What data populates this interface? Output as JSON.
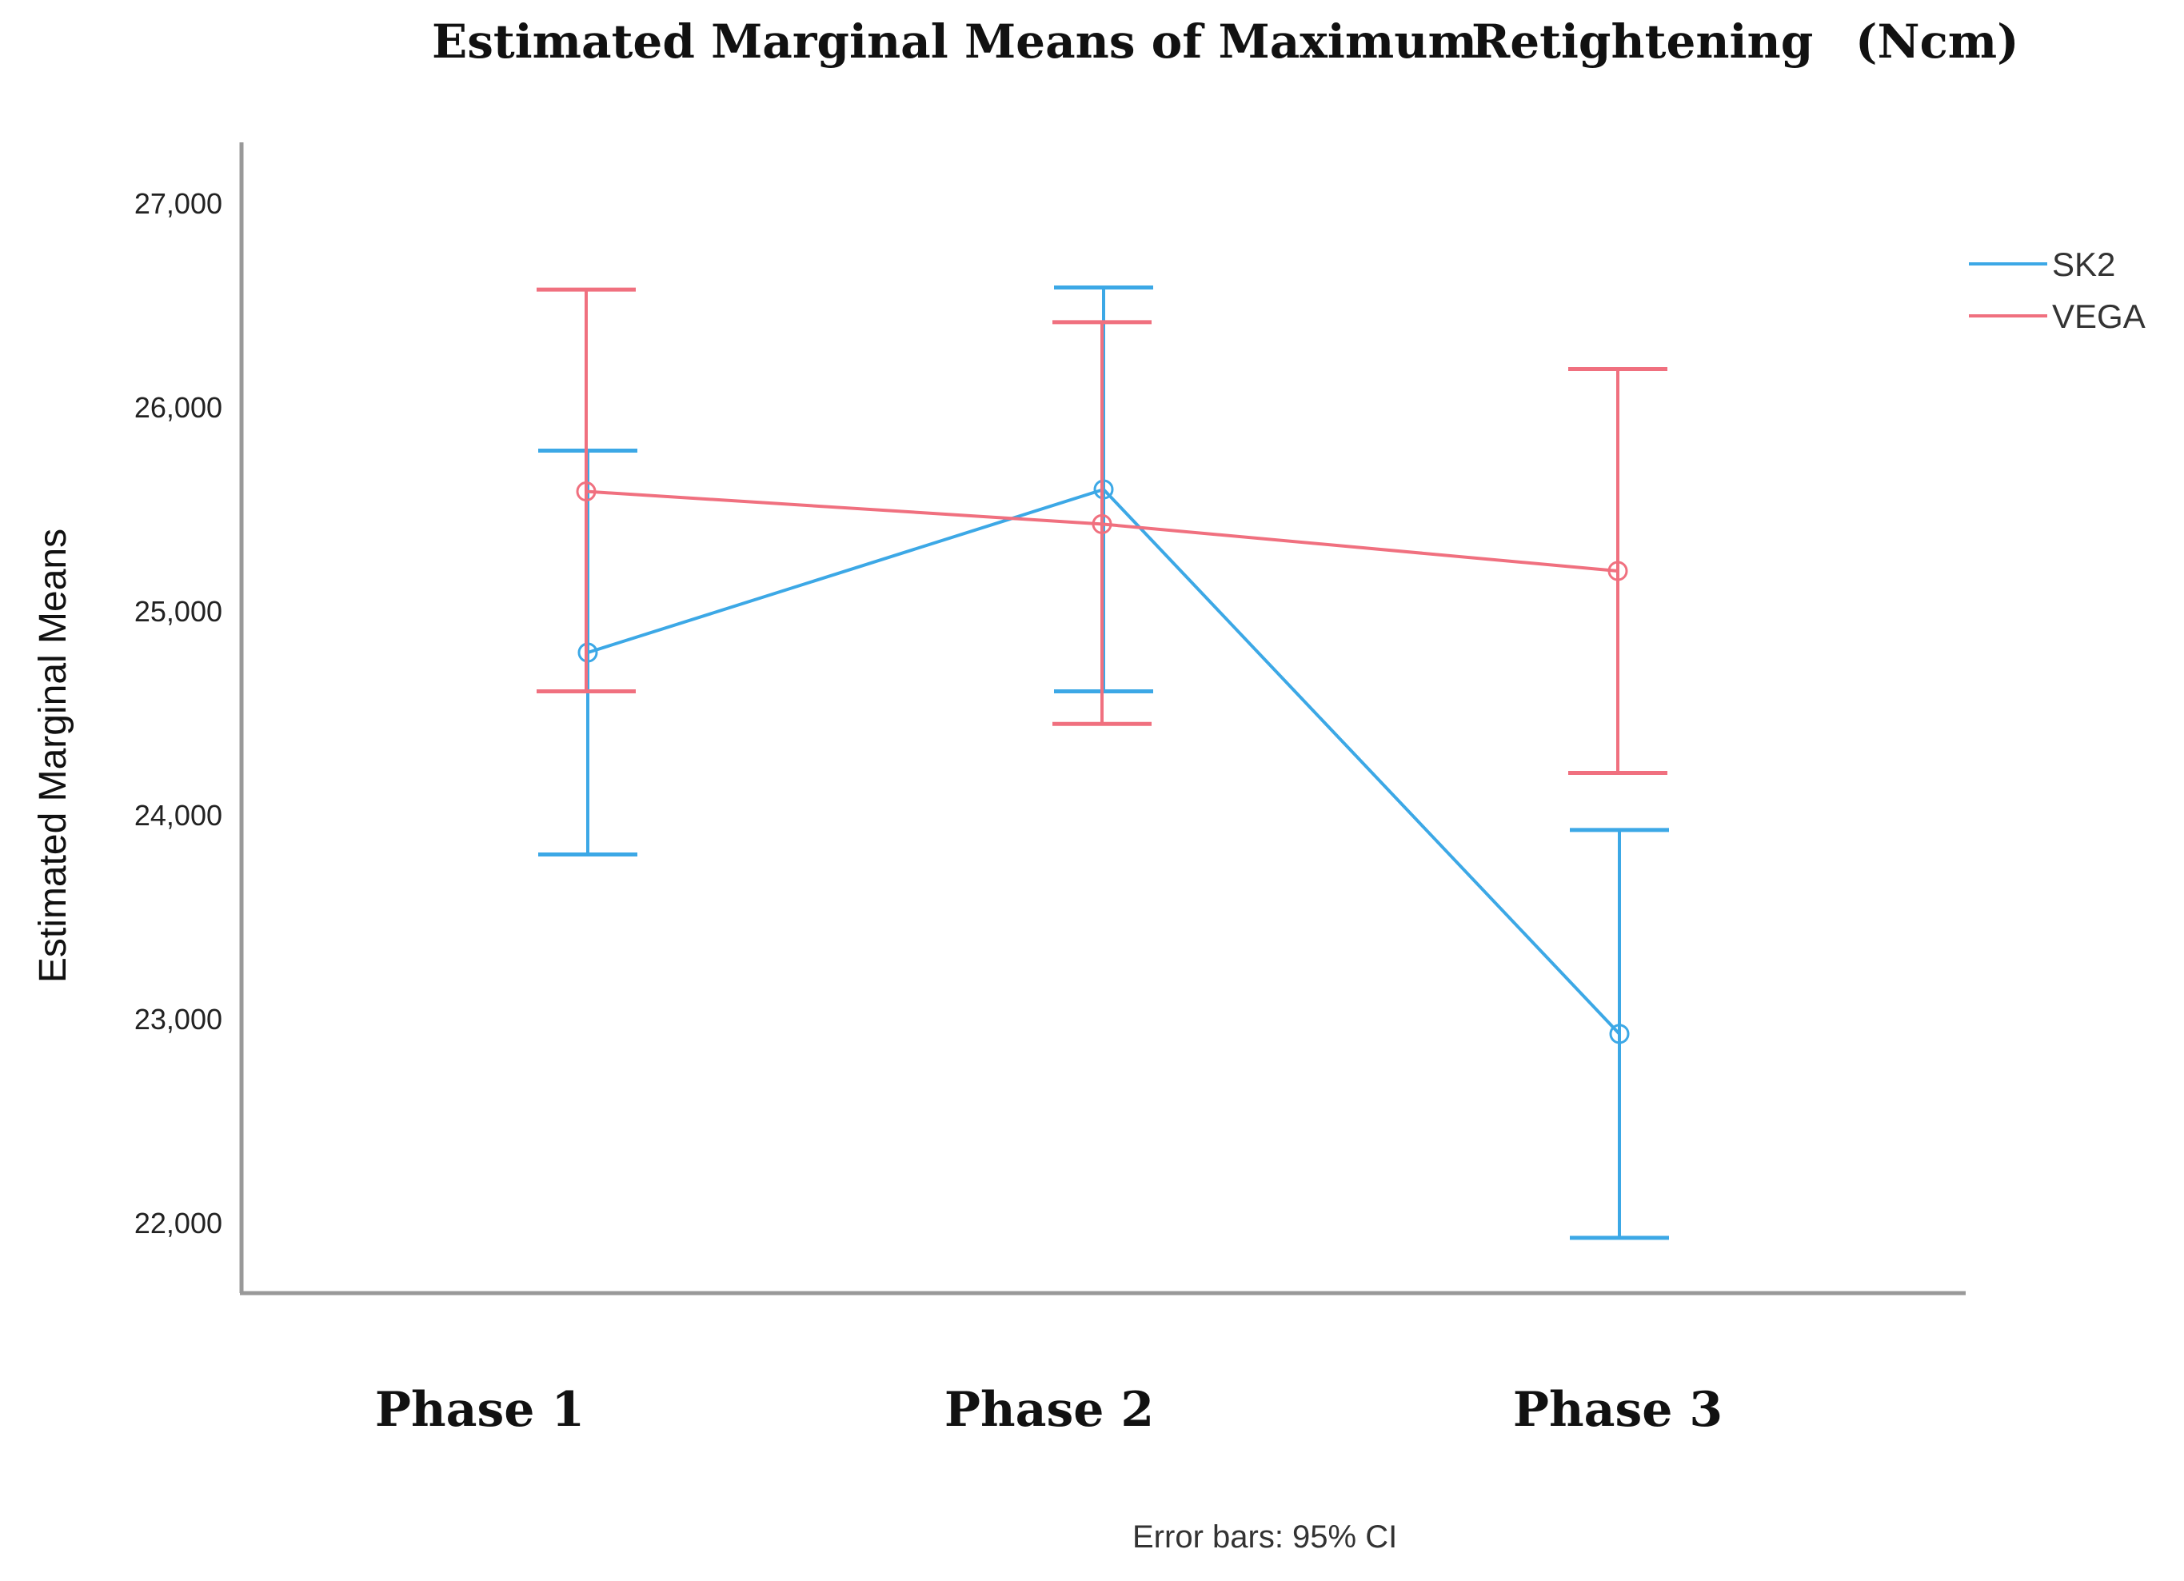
{
  "chart_data": {
    "type": "line",
    "title": "Estimated Marginal Means of Maximum Retightening (Ncm)",
    "title_parts": [
      "Estimated Marginal Means of Maximum",
      "Retightening",
      "(Ncm)"
    ],
    "ylabel": "Estimated Marginal Means",
    "xlabel": "",
    "categories": [
      "Phase 1",
      "Phase 2",
      "Phase 3"
    ],
    "ylim": [
      21850,
      27300
    ],
    "yticks": [
      22000,
      23000,
      24000,
      25000,
      26000,
      27000
    ],
    "ytick_labels": [
      "22,000",
      "23,000",
      "24,000",
      "25,000",
      "26,000",
      "27,000"
    ],
    "grid": false,
    "legend_position": "top-right",
    "error_note": "Error bars: 95% CI",
    "series": [
      {
        "name": "SK2",
        "color": "#3ca8e6",
        "values": [
          24800,
          25600,
          22930
        ],
        "ci_lower": [
          23810,
          24610,
          21930
        ],
        "ci_upper": [
          25790,
          26590,
          23930
        ]
      },
      {
        "name": "VEGA",
        "color": "#f0707f",
        "values": [
          25590,
          25430,
          25200
        ],
        "ci_lower": [
          24610,
          24450,
          24210
        ],
        "ci_upper": [
          26580,
          26420,
          26190
        ]
      }
    ]
  }
}
